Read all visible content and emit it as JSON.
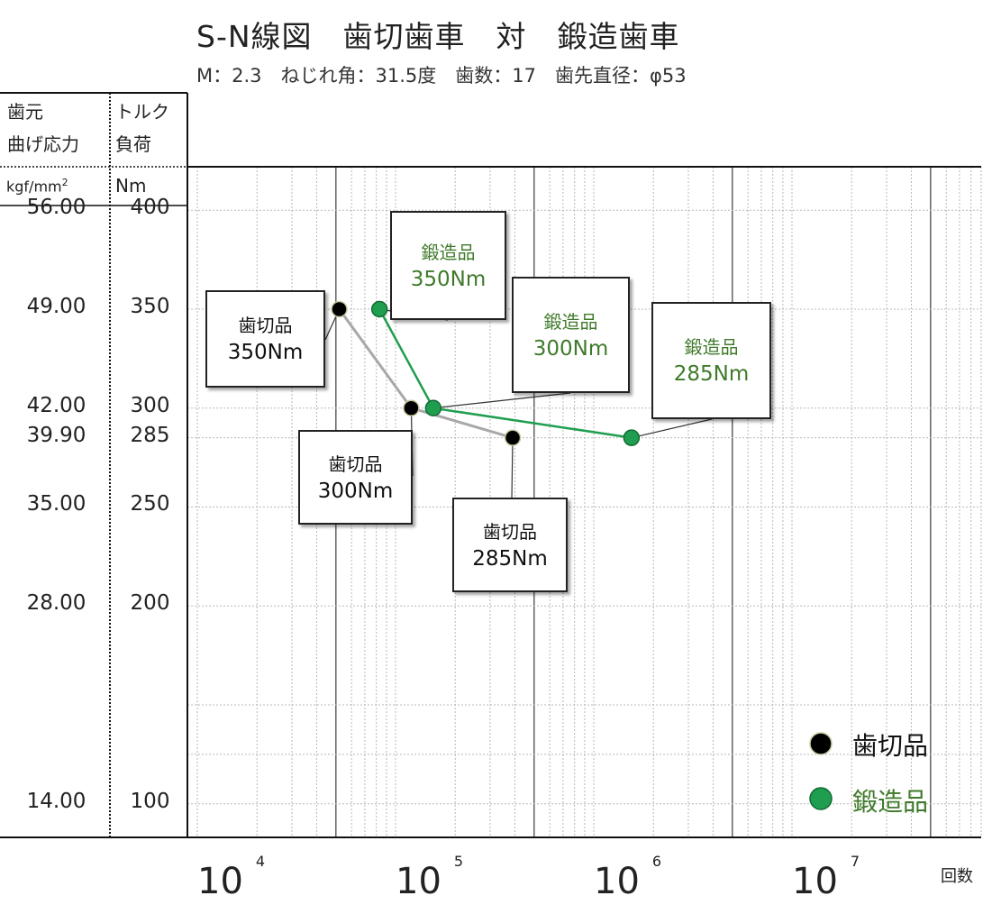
{
  "header": {
    "title": "S-N線図　歯切歯車　対　鍛造歯車",
    "subtitle": "M：2.3　ねじれ角：31.5度　歯数：17　歯先直径：φ53"
  },
  "axes": {
    "left_header_1_line1": "歯元",
    "left_header_1_line2": "曲げ応力",
    "left_header_2_line1": "トルク",
    "left_header_2_line2": "負荷",
    "stress_unit": "kgf/mm",
    "stress_unit_exp": "2",
    "torque_unit": "Nm",
    "x_unit": "回数",
    "stress_ticks": [
      "56.00",
      "49.00",
      "42.00",
      "39.90",
      "35.00",
      "28.00",
      "14.00"
    ],
    "torque_ticks": [
      "400",
      "350",
      "300",
      "285",
      "250",
      "200",
      "100"
    ],
    "x_base": "10",
    "x_exponents": [
      "4",
      "5",
      "6",
      "7"
    ]
  },
  "colors": {
    "hobbed": "#000000",
    "forged": "#1f9e4f",
    "hobbed_line": "#a8a8a8",
    "forged_text": "#3f7a2a"
  },
  "legend": {
    "hobbed": "歯切品",
    "forged": "鍛造品"
  },
  "callouts": [
    {
      "line1": "歯切品",
      "line2": "350Nm"
    },
    {
      "line1": "歯切品",
      "line2": "300Nm"
    },
    {
      "line1": "歯切品",
      "line2": "285Nm"
    },
    {
      "line1": "鍛造品",
      "line2": "350Nm"
    },
    {
      "line1": "鍛造品",
      "line2": "300Nm"
    },
    {
      "line1": "鍛造品",
      "line2": "285Nm"
    }
  ],
  "chart_data": {
    "type": "line",
    "xscale": "log",
    "xlim": [
      10000,
      40000000
    ],
    "ylim": [
      83,
      422
    ],
    "y_tick_values": [
      400,
      350,
      300,
      285,
      250,
      200,
      100
    ],
    "series": [
      {
        "name": "歯切品",
        "points": [
          {
            "x": 52000,
            "y": 350
          },
          {
            "x": 120000,
            "y": 300
          },
          {
            "x": 390000,
            "y": 285
          }
        ]
      },
      {
        "name": "鍛造品",
        "points": [
          {
            "x": 83000,
            "y": 350
          },
          {
            "x": 155000,
            "y": 300
          },
          {
            "x": 1550000,
            "y": 285
          }
        ]
      }
    ]
  }
}
